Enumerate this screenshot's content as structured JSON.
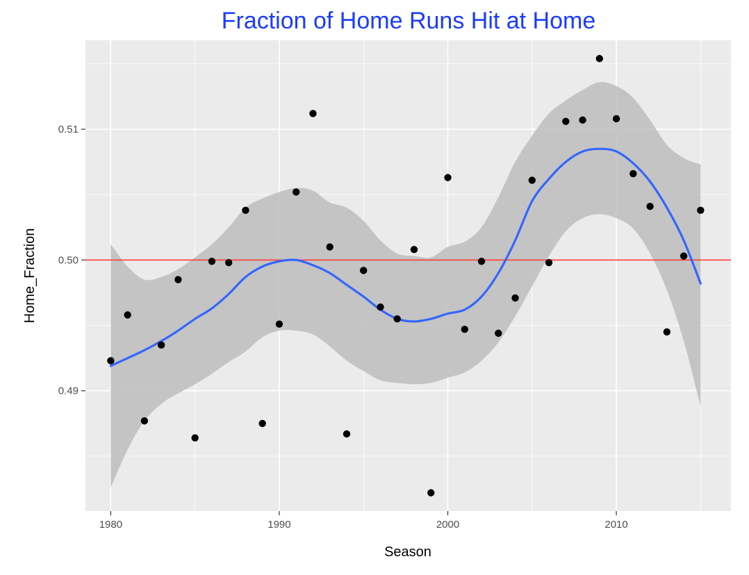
{
  "chart_data": {
    "type": "scatter",
    "title": "Fraction of Home Runs Hit at Home",
    "xlabel": "Season",
    "ylabel": "Home_Fraction",
    "xlim": [
      1978.5,
      2016.8
    ],
    "ylim": [
      0.4808,
      0.5168
    ],
    "x_ticks": [
      1980,
      1990,
      2000,
      2010
    ],
    "y_ticks": [
      0.49,
      0.5,
      0.51
    ],
    "x_tick_labels": [
      "1980",
      "1990",
      "2000",
      "2010"
    ],
    "y_tick_labels": [
      "0.49",
      "0.50",
      "0.51"
    ],
    "grid": true,
    "reference_line": {
      "y": 0.5,
      "color": "#ff3b30"
    },
    "colors": {
      "title": "#1a3cff",
      "points": "#000000",
      "smooth": "#3366ff",
      "band": "#bdbdbd",
      "panel": "#ebebeb",
      "grid": "#ffffff"
    },
    "series": [
      {
        "type": "points",
        "x": [
          1980,
          1981,
          1982,
          1983,
          1984,
          1985,
          1986,
          1987,
          1988,
          1989,
          1990,
          1991,
          1992,
          1993,
          1994,
          1995,
          1996,
          1997,
          1998,
          1999,
          2000,
          2001,
          2002,
          2003,
          2004,
          2005,
          2006,
          2007,
          2008,
          2009,
          2010,
          2011,
          2012,
          2013,
          2014,
          2015
        ],
        "y": [
          0.4923,
          0.4958,
          0.4877,
          0.4935,
          0.4985,
          0.4864,
          0.4999,
          0.4998,
          0.5038,
          0.4875,
          0.4951,
          0.5052,
          0.5112,
          0.501,
          0.4867,
          0.4992,
          0.4964,
          0.4955,
          0.5008,
          0.4822,
          0.5063,
          0.4947,
          0.4999,
          0.4944,
          0.4971,
          0.5061,
          0.4998,
          0.5106,
          0.5107,
          0.5154,
          0.5108,
          0.5066,
          0.5041,
          0.4945,
          0.5003,
          0.5038
        ]
      },
      {
        "type": "smooth",
        "x": [
          1980,
          1981,
          1982,
          1983,
          1984,
          1985,
          1986,
          1987,
          1988,
          1989,
          1990,
          1991,
          1992,
          1993,
          1994,
          1995,
          1996,
          1997,
          1998,
          1999,
          2000,
          2001,
          2002,
          2003,
          2004,
          2005,
          2006,
          2007,
          2008,
          2009,
          2010,
          2011,
          2012,
          2013,
          2014,
          2015
        ],
        "y": [
          0.4919,
          0.4925,
          0.4931,
          0.4938,
          0.4946,
          0.4955,
          0.4963,
          0.4974,
          0.4987,
          0.4995,
          0.4999,
          0.5,
          0.4996,
          0.499,
          0.4981,
          0.4972,
          0.4962,
          0.4955,
          0.4953,
          0.4955,
          0.4959,
          0.4962,
          0.4972,
          0.499,
          0.5015,
          0.5045,
          0.5062,
          0.5075,
          0.5083,
          0.5085,
          0.5083,
          0.5074,
          0.506,
          0.504,
          0.5015,
          0.4982
        ]
      },
      {
        "type": "band",
        "x": [
          1980,
          1981,
          1982,
          1983,
          1984,
          1985,
          1986,
          1987,
          1988,
          1989,
          1990,
          1991,
          1992,
          1993,
          1994,
          1995,
          1996,
          1997,
          1998,
          1999,
          2000,
          2001,
          2002,
          2003,
          2004,
          2005,
          2006,
          2007,
          2008,
          2009,
          2010,
          2011,
          2012,
          2013,
          2014,
          2015
        ],
        "upper": [
          0.5012,
          0.4995,
          0.4985,
          0.4987,
          0.4993,
          0.5002,
          0.5012,
          0.5025,
          0.504,
          0.5047,
          0.5052,
          0.5055,
          0.5053,
          0.5044,
          0.504,
          0.503,
          0.5015,
          0.5005,
          0.5003,
          0.5002,
          0.501,
          0.5014,
          0.5025,
          0.5048,
          0.5075,
          0.5095,
          0.5112,
          0.5122,
          0.513,
          0.5136,
          0.5133,
          0.5124,
          0.5107,
          0.5088,
          0.5078,
          0.5073
        ],
        "lower": [
          0.4826,
          0.4855,
          0.4877,
          0.489,
          0.4898,
          0.4905,
          0.4913,
          0.4922,
          0.493,
          0.4941,
          0.4946,
          0.4946,
          0.4943,
          0.4934,
          0.4923,
          0.4915,
          0.4908,
          0.4906,
          0.4905,
          0.4906,
          0.491,
          0.4914,
          0.4923,
          0.4937,
          0.4957,
          0.498,
          0.5003,
          0.5022,
          0.5032,
          0.5035,
          0.5032,
          0.5024,
          0.5005,
          0.4977,
          0.4938,
          0.4888
        ]
      }
    ]
  }
}
